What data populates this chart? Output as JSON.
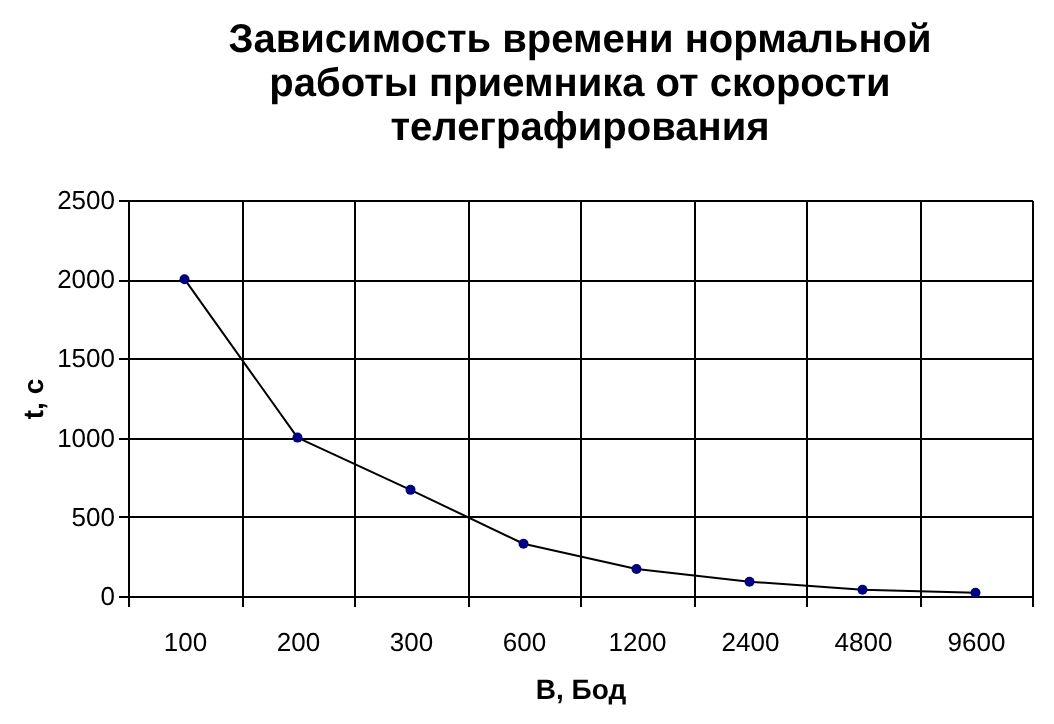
{
  "chart_data": {
    "type": "line",
    "title": [
      "Зависимость времени нормальной",
      "работы приемника от скорости",
      "телеграфирования"
    ],
    "xlabel": "B, Бод",
    "ylabel": "t, c",
    "categories": [
      "100",
      "200",
      "300",
      "600",
      "1200",
      "2400",
      "4800",
      "9600"
    ],
    "series": [
      {
        "color": "#000080",
        "values": [
          2000,
          1000,
          670,
          330,
          170,
          90,
          40,
          20
        ]
      }
    ],
    "ylim": [
      0,
      2500
    ],
    "yticks": [
      0,
      500,
      1000,
      1500,
      2000,
      2500
    ],
    "grid": true,
    "marker": "circle",
    "line_style": "solid"
  }
}
